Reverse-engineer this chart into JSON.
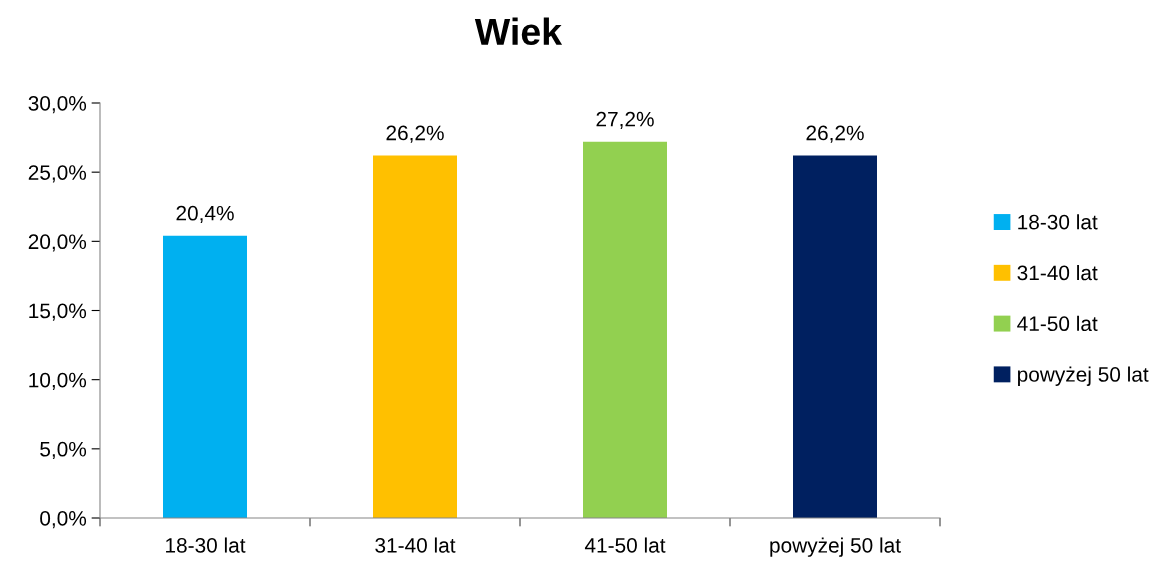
{
  "chart_data": {
    "type": "bar",
    "title": "Wiek",
    "categories": [
      "18-30 lat",
      "31-40 lat",
      "41-50 lat",
      "powyżej 50 lat"
    ],
    "series": [
      {
        "name": "18-30 lat",
        "color": "#00b0f0",
        "values": [
          20.4,
          null,
          null,
          null
        ],
        "value_labels": [
          "20,4%",
          null,
          null,
          null
        ]
      },
      {
        "name": "31-40 lat",
        "color": "#ffc000",
        "values": [
          null,
          26.2,
          null,
          null
        ],
        "value_labels": [
          null,
          "26,2%",
          null,
          null
        ]
      },
      {
        "name": "41-50 lat",
        "color": "#92d050",
        "values": [
          null,
          null,
          27.2,
          null
        ],
        "value_labels": [
          null,
          null,
          "27,2%",
          null
        ]
      },
      {
        "name": "powyżej 50 lat",
        "color": "#002060",
        "values": [
          null,
          null,
          null,
          26.2
        ],
        "value_labels": [
          null,
          null,
          null,
          "26,2%"
        ]
      }
    ],
    "ylim": [
      0,
      30
    ],
    "yticks": [
      {
        "value": 0,
        "label": "0,0%"
      },
      {
        "value": 5,
        "label": "5,0%"
      },
      {
        "value": 10,
        "label": "10,0%"
      },
      {
        "value": 15,
        "label": "15,0%"
      },
      {
        "value": 20,
        "label": "20,0%"
      },
      {
        "value": 25,
        "label": "25,0%"
      },
      {
        "value": 30,
        "label": "30,0%"
      }
    ],
    "grid": false,
    "legend": "right"
  }
}
